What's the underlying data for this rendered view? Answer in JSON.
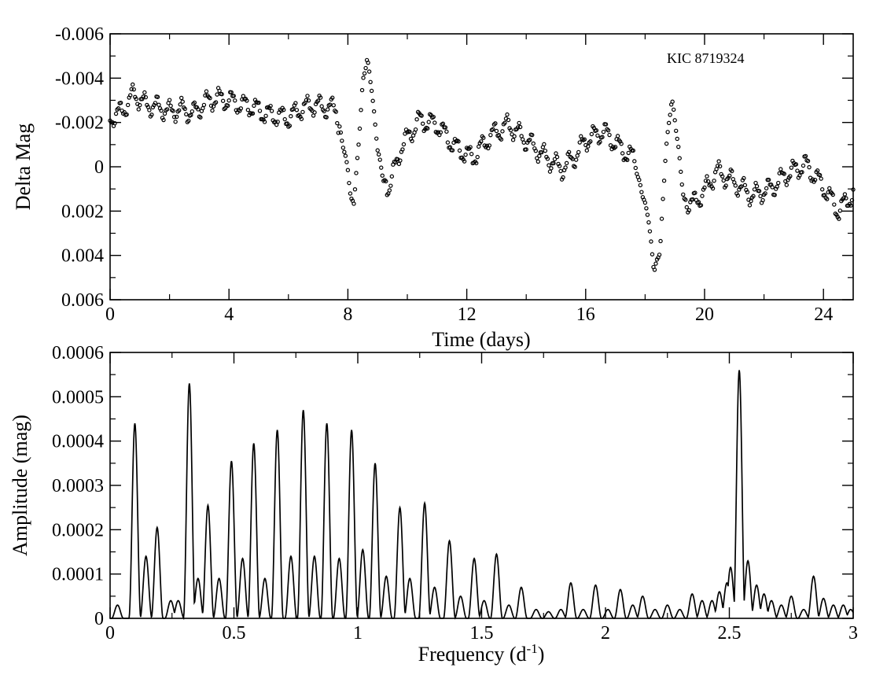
{
  "chart_data": [
    {
      "id": "lightcurve",
      "type": "scatter",
      "title": "",
      "annotation": "KIC 8719324",
      "xlabel": "Time (days)",
      "ylabel": "Delta Mag",
      "xlim": [
        0,
        25
      ],
      "ylim": [
        0.006,
        -0.006
      ],
      "y_inverted": true,
      "grid": false,
      "x_ticks": [
        0,
        4,
        8,
        12,
        16,
        20,
        24
      ],
      "x_tick_labels": [
        "0",
        "4",
        "8",
        "12",
        "16",
        "20",
        "24"
      ],
      "y_ticks": [
        -0.006,
        -0.004,
        -0.002,
        0,
        0.002,
        0.004,
        0.006
      ],
      "y_tick_labels": [
        "-0.006",
        "-0.004",
        "-0.002",
        "0",
        "0.002",
        "0.004",
        "0.006"
      ],
      "sample_step_days": 0.04,
      "series": [
        {
          "name": "Delta Mag",
          "marker": "open-circle",
          "trend_x": [
            0,
            0.4,
            0.8,
            1.2,
            1.6,
            2.0,
            2.4,
            2.8,
            3.2,
            3.6,
            4.0,
            4.4,
            4.8,
            5.2,
            5.6,
            6.0,
            6.4,
            6.8,
            7.2,
            7.6,
            7.8,
            8.0,
            8.1,
            8.2,
            8.35,
            8.5,
            8.65,
            8.8,
            9.0,
            9.2,
            9.4,
            9.8,
            10.4,
            11.0,
            11.6,
            12.2,
            12.8,
            13.4,
            14.0,
            14.6,
            15.2,
            15.6,
            16.0,
            16.6,
            17.2,
            17.6,
            17.9,
            18.1,
            18.3,
            18.5,
            18.7,
            18.9,
            19.1,
            19.3,
            19.6,
            20.0,
            20.4,
            21.0,
            21.6,
            22.2,
            22.8,
            23.4,
            24.0,
            24.5,
            25.0
          ],
          "trend_y": [
            -0.0022,
            -0.0025,
            -0.0033,
            -0.0028,
            -0.0027,
            -0.0025,
            -0.0026,
            -0.0024,
            -0.0029,
            -0.0031,
            -0.003,
            -0.0028,
            -0.0027,
            -0.0024,
            -0.0023,
            -0.0022,
            -0.0026,
            -0.0028,
            -0.0027,
            -0.0026,
            -0.0012,
            0.0001,
            0.0015,
            0.0016,
            -0.0008,
            -0.0038,
            -0.0049,
            -0.0035,
            -0.0008,
            0.0006,
            0.0009,
            -0.0009,
            -0.0021,
            -0.0019,
            -0.0009,
            -0.0004,
            -0.0014,
            -0.0019,
            -0.0012,
            -0.0005,
            0.0001,
            -0.0004,
            -0.0012,
            -0.0016,
            -0.0008,
            -0.0004,
            0.0012,
            0.0022,
            0.0047,
            0.0038,
            -0.0008,
            -0.0031,
            -0.0011,
            0.0015,
            0.0017,
            0.0011,
            0.0002,
            0.0007,
            0.0013,
            0.001,
            0.0003,
            -0.0001,
            0.0009,
            0.002,
            0.0012
          ],
          "wiggle_amplitude": 0.0004,
          "wiggle_period_days": 0.42
        }
      ]
    },
    {
      "id": "spectrum",
      "type": "line",
      "title": "",
      "xlabel": "Frequency (d",
      "xlabel_sup": "-1",
      "xlabel_close": ")",
      "ylabel": "Amplitude (mag)",
      "xlim": [
        0,
        3
      ],
      "ylim": [
        0,
        0.0006
      ],
      "grid": false,
      "x_ticks": [
        0,
        0.5,
        1,
        1.5,
        2,
        2.5,
        3
      ],
      "x_tick_labels": [
        "0",
        "0.5",
        "1",
        "1.5",
        "2",
        "2.5",
        "3"
      ],
      "y_ticks": [
        0,
        0.0001,
        0.0002,
        0.0003,
        0.0004,
        0.0005,
        0.0006
      ],
      "y_tick_labels": [
        "0",
        "0.0001",
        "0.0002",
        "0.0003",
        "0.0004",
        "0.0005",
        "0.0006"
      ],
      "series": [
        {
          "name": "Amplitude",
          "peaks": [
            {
              "f": 0.03,
              "a": 3e-05
            },
            {
              "f": 0.1,
              "a": 0.00044
            },
            {
              "f": 0.145,
              "a": 0.00014
            },
            {
              "f": 0.19,
              "a": 0.000205
            },
            {
              "f": 0.245,
              "a": 4e-05
            },
            {
              "f": 0.275,
              "a": 4e-05
            },
            {
              "f": 0.32,
              "a": 0.00053
            },
            {
              "f": 0.355,
              "a": 9e-05
            },
            {
              "f": 0.395,
              "a": 0.000255
            },
            {
              "f": 0.44,
              "a": 9e-05
            },
            {
              "f": 0.49,
              "a": 0.000355
            },
            {
              "f": 0.535,
              "a": 0.000135
            },
            {
              "f": 0.58,
              "a": 0.000395
            },
            {
              "f": 0.625,
              "a": 9e-05
            },
            {
              "f": 0.675,
              "a": 0.000425
            },
            {
              "f": 0.73,
              "a": 0.00014
            },
            {
              "f": 0.78,
              "a": 0.00047
            },
            {
              "f": 0.825,
              "a": 0.00014
            },
            {
              "f": 0.875,
              "a": 0.00044
            },
            {
              "f": 0.925,
              "a": 0.000135
            },
            {
              "f": 0.975,
              "a": 0.000425
            },
            {
              "f": 1.02,
              "a": 0.000155
            },
            {
              "f": 1.07,
              "a": 0.00035
            },
            {
              "f": 1.115,
              "a": 9.5e-05
            },
            {
              "f": 1.17,
              "a": 0.00025
            },
            {
              "f": 1.21,
              "a": 9e-05
            },
            {
              "f": 1.27,
              "a": 0.00026
            },
            {
              "f": 1.31,
              "a": 7e-05
            },
            {
              "f": 1.37,
              "a": 0.000175
            },
            {
              "f": 1.415,
              "a": 5e-05
            },
            {
              "f": 1.47,
              "a": 0.000135
            },
            {
              "f": 1.51,
              "a": 4e-05
            },
            {
              "f": 1.56,
              "a": 0.000145
            },
            {
              "f": 1.61,
              "a": 3e-05
            },
            {
              "f": 1.66,
              "a": 7e-05
            },
            {
              "f": 1.72,
              "a": 2e-05
            },
            {
              "f": 1.77,
              "a": 1.5e-05
            },
            {
              "f": 1.82,
              "a": 2e-05
            },
            {
              "f": 1.86,
              "a": 8e-05
            },
            {
              "f": 1.91,
              "a": 2e-05
            },
            {
              "f": 1.96,
              "a": 7.5e-05
            },
            {
              "f": 2.01,
              "a": 2e-05
            },
            {
              "f": 2.06,
              "a": 6.5e-05
            },
            {
              "f": 2.11,
              "a": 3e-05
            },
            {
              "f": 2.15,
              "a": 5e-05
            },
            {
              "f": 2.2,
              "a": 2e-05
            },
            {
              "f": 2.25,
              "a": 3e-05
            },
            {
              "f": 2.3,
              "a": 2e-05
            },
            {
              "f": 2.35,
              "a": 5.5e-05
            },
            {
              "f": 2.39,
              "a": 4e-05
            },
            {
              "f": 2.43,
              "a": 4e-05
            },
            {
              "f": 2.46,
              "a": 6e-05
            },
            {
              "f": 2.49,
              "a": 8e-05
            },
            {
              "f": 2.505,
              "a": 0.000115
            },
            {
              "f": 2.54,
              "a": 0.00056
            },
            {
              "f": 2.575,
              "a": 0.00013
            },
            {
              "f": 2.61,
              "a": 7.5e-05
            },
            {
              "f": 2.64,
              "a": 5.5e-05
            },
            {
              "f": 2.67,
              "a": 4e-05
            },
            {
              "f": 2.71,
              "a": 3e-05
            },
            {
              "f": 2.75,
              "a": 5e-05
            },
            {
              "f": 2.8,
              "a": 2e-05
            },
            {
              "f": 2.84,
              "a": 9.5e-05
            },
            {
              "f": 2.88,
              "a": 4.5e-05
            },
            {
              "f": 2.92,
              "a": 3e-05
            },
            {
              "f": 2.96,
              "a": 3e-05
            },
            {
              "f": 2.99,
              "a": 2e-05
            }
          ],
          "peak_half_width": 0.024
        }
      ]
    }
  ]
}
